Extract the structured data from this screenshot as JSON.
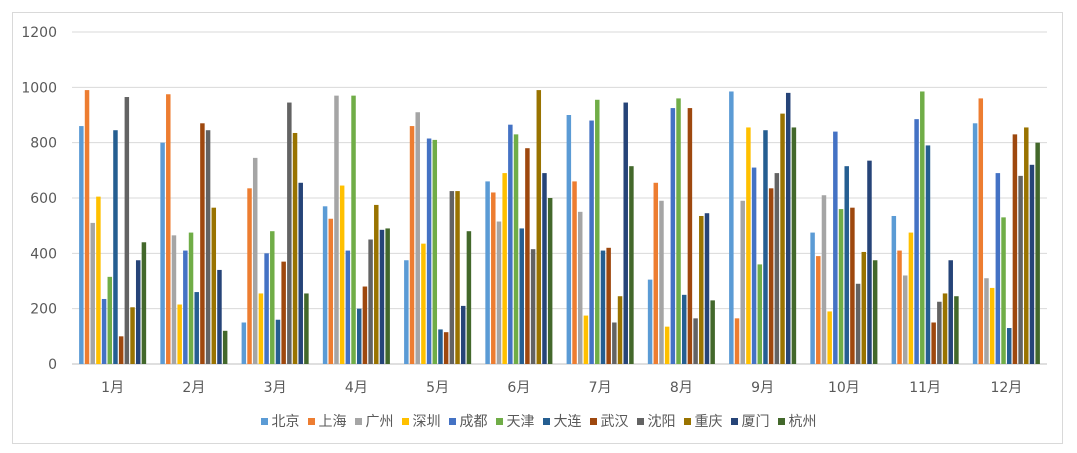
{
  "chart_data": {
    "type": "bar",
    "title": "",
    "xlabel": "",
    "ylabel": "",
    "ylim": [
      0,
      1200
    ],
    "yticks": [
      0,
      200,
      400,
      600,
      800,
      1000,
      1200
    ],
    "grid": true,
    "legend_position": "bottom",
    "categories": [
      "1月",
      "2月",
      "3月",
      "4月",
      "5月",
      "6月",
      "7月",
      "8月",
      "9月",
      "10月",
      "11月",
      "12月"
    ],
    "series": [
      {
        "name": "北京",
        "color": "#5B9BD5",
        "values": [
          860,
          800,
          150,
          570,
          375,
          660,
          900,
          305,
          985,
          475,
          535,
          870
        ]
      },
      {
        "name": "上海",
        "color": "#ED7D31",
        "values": [
          990,
          975,
          635,
          525,
          860,
          620,
          660,
          655,
          165,
          390,
          410,
          960
        ]
      },
      {
        "name": "广州",
        "color": "#A5A5A5",
        "values": [
          510,
          465,
          745,
          970,
          910,
          515,
          550,
          590,
          590,
          610,
          320,
          310
        ]
      },
      {
        "name": "深圳",
        "color": "#FFC000",
        "values": [
          605,
          215,
          255,
          645,
          435,
          690,
          175,
          135,
          855,
          190,
          475,
          275
        ]
      },
      {
        "name": "成都",
        "color": "#4472C4",
        "values": [
          235,
          410,
          400,
          410,
          815,
          865,
          880,
          925,
          710,
          840,
          885,
          690
        ]
      },
      {
        "name": "天津",
        "color": "#70AD47",
        "values": [
          315,
          475,
          480,
          970,
          810,
          830,
          955,
          960,
          360,
          560,
          985,
          530
        ]
      },
      {
        "name": "大连",
        "color": "#255E91",
        "values": [
          845,
          260,
          160,
          200,
          125,
          490,
          410,
          250,
          845,
          715,
          790,
          130
        ]
      },
      {
        "name": "武汉",
        "color": "#9E480E",
        "values": [
          100,
          870,
          370,
          280,
          115,
          780,
          420,
          925,
          635,
          565,
          150,
          830
        ]
      },
      {
        "name": "沈阳",
        "color": "#636363",
        "values": [
          965,
          845,
          945,
          450,
          625,
          415,
          150,
          165,
          690,
          290,
          225,
          680
        ]
      },
      {
        "name": "重庆",
        "color": "#997300",
        "values": [
          205,
          565,
          835,
          575,
          625,
          990,
          245,
          535,
          905,
          405,
          255,
          855
        ]
      },
      {
        "name": "厦门",
        "color": "#264478",
        "values": [
          375,
          340,
          655,
          485,
          210,
          690,
          945,
          545,
          980,
          735,
          375,
          720
        ]
      },
      {
        "name": "杭州",
        "color": "#43682B",
        "values": [
          440,
          120,
          255,
          490,
          480,
          600,
          715,
          230,
          855,
          375,
          245,
          800
        ]
      }
    ]
  }
}
